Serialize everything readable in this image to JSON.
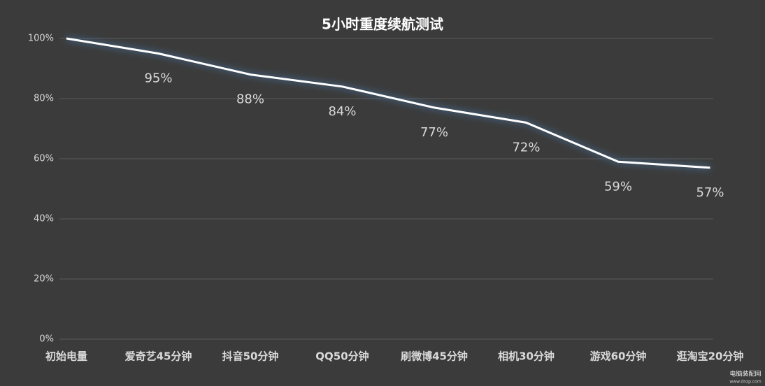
{
  "chart_data": {
    "type": "line",
    "title": "5小时重度续航测试",
    "categories": [
      "初始电量",
      "爱奇艺45分钟",
      "抖音50分钟",
      "QQ50分钟",
      "刷微博45分钟",
      "相机30分钟",
      "游戏60分钟",
      "逛淘宝20分钟"
    ],
    "values": [
      100,
      95,
      88,
      84,
      77,
      72,
      59,
      57
    ],
    "value_labels": [
      null,
      "95%",
      "88%",
      "84%",
      "77%",
      "72%",
      "59%",
      "57%"
    ],
    "color": "#ffffff",
    "ylim": [
      0,
      100
    ],
    "yticks": [
      {
        "value": 0,
        "label": "0%"
      },
      {
        "value": 20,
        "label": "20%"
      },
      {
        "value": 40,
        "label": "40%"
      },
      {
        "value": 60,
        "label": "60%"
      },
      {
        "value": 80,
        "label": "80%"
      },
      {
        "value": 100,
        "label": "100%"
      }
    ],
    "grid": true
  },
  "watermark": {
    "name": "电脑装配网",
    "url": "www.dnzp.com"
  }
}
